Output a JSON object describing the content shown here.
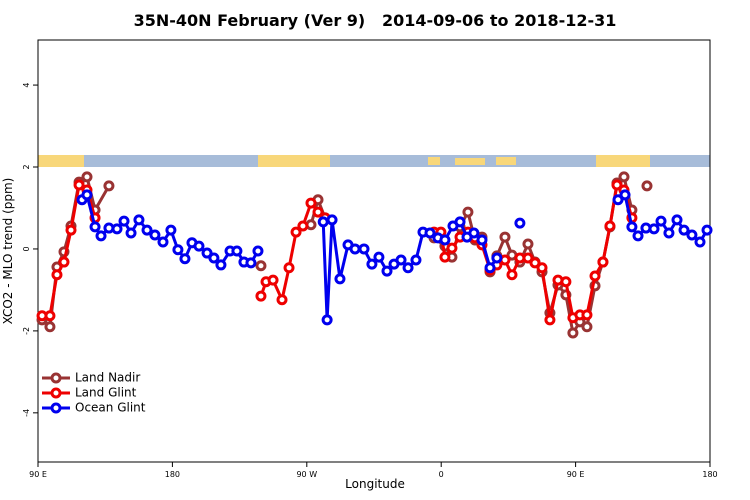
{
  "chart_data": {
    "type": "line",
    "title": "35N-40N February (Ver 9)   2014-09-06 to 2018-12-31",
    "x_label": "Longitude",
    "y_label": "XCO2 - MLO trend (ppm)",
    "xlim": [
      90,
      540
    ],
    "ylim": [
      -5.2,
      5.1
    ],
    "xticks": [
      {
        "value": 90,
        "label": "90 E"
      },
      {
        "value": 180,
        "label": "180"
      },
      {
        "value": 270,
        "label": "90 W"
      },
      {
        "value": 360,
        "label": "0"
      },
      {
        "value": 450,
        "label": "90 E"
      },
      {
        "value": 540,
        "label": "180"
      }
    ],
    "yticks": [
      -4,
      -2,
      0,
      2,
      4
    ],
    "legend": "bottomleft",
    "series": [
      {
        "name": "Land Nadir",
        "color": "#993333",
        "x": [
          92.7,
          98,
          102.7,
          107.4,
          112.1,
          117.5,
          122.8,
          128.2,
          137.5,
          190,
          239.3,
          260,
          272.8,
          277.5,
          282.2,
          320,
          355.2,
          362.5,
          367.2,
          372.6,
          377.9,
          382.6,
          387.3,
          392.7,
          397.3,
          402.7,
          407.4,
          412.7,
          418.1,
          422.8,
          427.5,
          432.8,
          438.2,
          443.5,
          448.2,
          452.9,
          457.6,
          463,
          468.3,
          473,
          477.7,
          482.4,
          487.7,
          492,
          497.8
        ],
        "values": [
          -1.73,
          -1.9,
          -0.44,
          -0.07,
          0.56,
          1.63,
          1.76,
          0.95,
          1.54,
          null,
          -0.41,
          null,
          0.59,
          1.2,
          0.76,
          null,
          0.27,
          0.07,
          -0.2,
          0.54,
          0.9,
          0.22,
          0.29,
          -0.56,
          -0.17,
          0.29,
          -0.15,
          -0.32,
          0.12,
          -0.32,
          -0.56,
          -1.56,
          -0.88,
          -1.12,
          -2.05,
          -1.78,
          -1.9,
          -0.9,
          -0.32,
          0.54,
          1.61,
          1.76,
          0.95,
          null,
          1.54
        ]
      },
      {
        "name": "Land Glint",
        "color": "#ee0000",
        "x": [
          92.7,
          98,
          102.7,
          107.4,
          112.1,
          117.5,
          122.8,
          128.2,
          180,
          239.3,
          242.7,
          247.4,
          253.4,
          258.1,
          262.8,
          267.4,
          272.8,
          277.5,
          282.2,
          320,
          355.2,
          359.8,
          362.5,
          367.2,
          372.6,
          377.9,
          382.6,
          387.3,
          392.7,
          397.3,
          402.7,
          407.4,
          412.7,
          418.1,
          422.8,
          427.5,
          432.8,
          438.2,
          443.5,
          448.2,
          452.9,
          457.6,
          463,
          468.3,
          473,
          477.7,
          482.4,
          487.7
        ],
        "values": [
          -1.63,
          -1.63,
          -0.63,
          -0.32,
          0.46,
          1.56,
          1.44,
          0.76,
          null,
          -1.15,
          -0.8,
          -0.76,
          -1.24,
          -0.46,
          0.41,
          0.56,
          1.12,
          0.9,
          0.76,
          null,
          0.41,
          0.41,
          -0.2,
          0.02,
          0.29,
          0.41,
          0.27,
          0.1,
          -0.51,
          -0.39,
          -0.27,
          -0.63,
          -0.22,
          -0.22,
          -0.34,
          -0.46,
          -1.73,
          -0.76,
          -0.8,
          -1.68,
          -1.61,
          -1.61,
          -0.66,
          -0.32,
          0.56,
          1.56,
          1.44,
          0.76
        ]
      },
      {
        "name": "Ocean Glint",
        "color": "#0000ee",
        "x": [
          119.5,
          122.8,
          128.2,
          132.2,
          137.5,
          142.9,
          147.6,
          152.3,
          157.6,
          163,
          168.3,
          173.7,
          179,
          183.7,
          188.4,
          193.1,
          197.8,
          203.2,
          207.8,
          212.5,
          218.6,
          223.2,
          227.9,
          232.6,
          237.3,
          260,
          281,
          283.6,
          286.9,
          292.2,
          297.6,
          302.3,
          308.3,
          313.6,
          318.3,
          323.7,
          328.4,
          333.1,
          337.8,
          343.1,
          347.8,
          352.5,
          357.8,
          362.5,
          367.9,
          372.6,
          377.3,
          381.9,
          387.3,
          392.7,
          397.3,
          405,
          412.7,
          450,
          478.4,
          483.1,
          487.7,
          491.8,
          497.1,
          502.5,
          507.2,
          512.5,
          517.9,
          522.6,
          527.9,
          533.3,
          538
        ],
        "values": [
          1.2,
          1.32,
          0.54,
          0.32,
          0.51,
          0.49,
          0.68,
          0.39,
          0.71,
          0.46,
          0.34,
          0.17,
          0.46,
          -0.02,
          -0.24,
          0.15,
          0.07,
          -0.1,
          -0.22,
          -0.39,
          -0.05,
          -0.05,
          -0.32,
          -0.34,
          -0.05,
          null,
          0.66,
          -1.73,
          0.71,
          -0.73,
          0.1,
          0,
          0,
          -0.37,
          -0.2,
          -0.54,
          -0.37,
          -0.27,
          -0.46,
          -0.27,
          0.41,
          0.39,
          0.27,
          0.22,
          0.56,
          0.66,
          0.29,
          0.39,
          0.22,
          -0.46,
          -0.22,
          null,
          0.63,
          null,
          1.2,
          1.32,
          0.54,
          0.32,
          0.51,
          0.49,
          0.68,
          0.39,
          0.71,
          0.46,
          0.34,
          0.17,
          0.46
        ]
      }
    ]
  }
}
